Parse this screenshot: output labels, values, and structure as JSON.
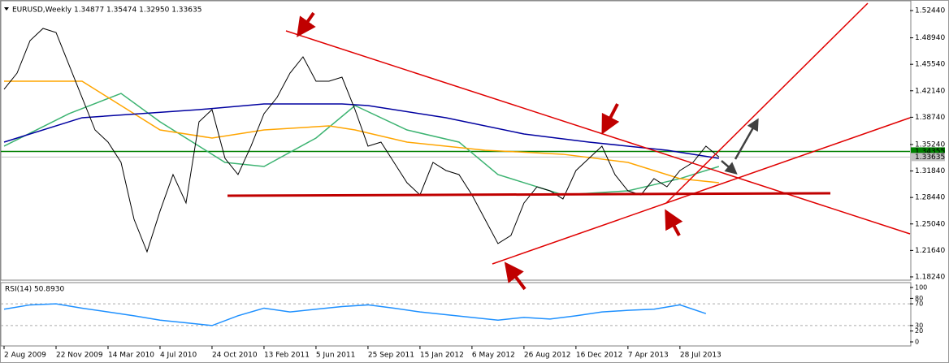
{
  "chart_data": {
    "type": "line",
    "title": "EURUSD,Weekly  1.34877 1.35474 1.32950 1.33635",
    "x_labels": [
      "2 Aug 2009",
      "22 Nov 2009",
      "14 Mar 2010",
      "4 Jul 2010",
      "24 Oct 2010",
      "13 Feb 2011",
      "5 Jun 2011",
      "25 Sep 2011",
      "15 Jan 2012",
      "6 May 2012",
      "26 Aug 2012",
      "16 Dec 2012",
      "7 Apr 2013",
      "28 Jul 2013"
    ],
    "xlim": [
      -0.25,
      69.7
    ],
    "ylim": [
      1.1782,
      1.5338
    ],
    "yticks": [
      {
        "value": 1.5244,
        "label": "1.52440"
      },
      {
        "value": 1.4894,
        "label": "1.48940"
      },
      {
        "value": 1.4554,
        "label": "1.45540"
      },
      {
        "value": 1.4214,
        "label": "1.42140"
      },
      {
        "value": 1.3874,
        "label": "1.38740"
      },
      {
        "value": 1.3524,
        "label": "1.35240"
      },
      {
        "value": 1.3184,
        "label": "1.31840"
      },
      {
        "value": 1.2844,
        "label": "1.28440"
      },
      {
        "value": 1.2504,
        "label": "1.25040"
      },
      {
        "value": 1.2164,
        "label": "1.21640"
      },
      {
        "value": 1.1824,
        "label": "1.18240"
      }
    ],
    "price_tags": [
      {
        "value": 1.34355,
        "color": "#008000"
      },
      {
        "value": 1.33635,
        "color": "#c0c0c0"
      }
    ],
    "series": [
      {
        "color": "#000000",
        "x": [
          0,
          1,
          2,
          3,
          4,
          5,
          6,
          7,
          8,
          9,
          10,
          11,
          12,
          13,
          14,
          15,
          16,
          17,
          18,
          19,
          20,
          21,
          22,
          23,
          24,
          25,
          26,
          27,
          28,
          29,
          30,
          31,
          32,
          33,
          34,
          35,
          36,
          37,
          38,
          39,
          40,
          41,
          42,
          43,
          44,
          45,
          46,
          47,
          48,
          49,
          50,
          51,
          52,
          53,
          54,
          55
        ],
        "values": [
          1.4233,
          1.4441,
          1.4858,
          1.5015,
          1.4962,
          1.4545,
          1.4128,
          1.3711,
          1.3555,
          1.3294,
          1.2564,
          1.2147,
          1.2669,
          1.3138,
          1.2773,
          1.3816,
          1.3972,
          1.3346,
          1.3138,
          1.3503,
          1.392,
          1.4128,
          1.4441,
          1.465,
          1.4337,
          1.4337,
          1.4389,
          1.3972,
          1.3503,
          1.3555,
          1.3294,
          1.3033,
          1.2877,
          1.3294,
          1.319,
          1.3138,
          1.2877,
          1.2564,
          1.2252,
          1.2356,
          1.2773,
          1.2981,
          1.2929,
          1.2825,
          1.319,
          1.3346,
          1.3503,
          1.3138,
          1.2929,
          1.2877,
          1.3086,
          1.2981,
          1.319,
          1.3294,
          1.3503,
          1.3364
        ]
      },
      {
        "color": "#0000a0",
        "x": [
          0,
          6,
          15,
          20,
          26,
          28,
          34,
          40,
          45,
          51,
          55
        ],
        "values": [
          1.3555,
          1.3868,
          1.3972,
          1.4045,
          1.4045,
          1.4024,
          1.3868,
          1.3659,
          1.3555,
          1.3451,
          1.3346
        ]
      },
      {
        "color": "#ffa500",
        "x": [
          0,
          6,
          9,
          12,
          16,
          20,
          25,
          27,
          31,
          37,
          43,
          48,
          52,
          55
        ],
        "values": [
          1.4337,
          1.4337,
          1.4024,
          1.3711,
          1.3607,
          1.3711,
          1.3763,
          1.3711,
          1.3555,
          1.3451,
          1.3399,
          1.3294,
          1.3086,
          1.3033
        ]
      },
      {
        "color": "#3cb371",
        "x": [
          0,
          5,
          9,
          12,
          17,
          20,
          24,
          27,
          31,
          35,
          38,
          43,
          48,
          52,
          55
        ],
        "values": [
          1.3503,
          1.392,
          1.418,
          1.3816,
          1.3294,
          1.3242,
          1.3607,
          1.4024,
          1.3711,
          1.3555,
          1.3138,
          1.2877,
          1.2929,
          1.3086,
          1.3242
        ]
      }
    ],
    "rsi": {
      "label": "RSI(14) 50.8930",
      "color": "#1e90ff",
      "ylim": [
        0,
        100
      ],
      "yticks": [
        100,
        80,
        70,
        30,
        20,
        0
      ],
      "levels": [
        70,
        30
      ],
      "x": [
        0,
        2,
        4,
        6,
        8,
        10,
        12,
        14,
        16,
        18,
        20,
        22,
        24,
        26,
        28,
        30,
        32,
        34,
        36,
        38,
        40,
        42,
        44,
        46,
        48,
        50,
        52,
        54
      ],
      "values": [
        60,
        68,
        70,
        62,
        55,
        48,
        40,
        35,
        30,
        48,
        62,
        55,
        60,
        65,
        68,
        62,
        55,
        50,
        45,
        40,
        45,
        42,
        48,
        55,
        58,
        60,
        68,
        52
      ]
    }
  }
}
